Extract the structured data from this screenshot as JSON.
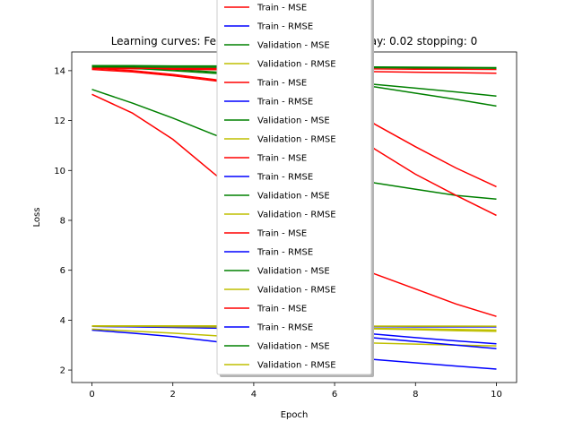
{
  "chart_data": {
    "type": "line",
    "title": "Learning curves: Features: 30 lr: 0.1 weight_decay: 0.02 stopping: 0",
    "xlabel": "Epoch",
    "ylabel": "Loss",
    "xlim": [
      -0.5,
      10.5
    ],
    "ylim": [
      1.5,
      14.75
    ],
    "xticks": [
      0,
      2,
      4,
      6,
      8,
      10
    ],
    "yticks": [
      2,
      4,
      6,
      8,
      10,
      12,
      14
    ],
    "grid": false,
    "legend_position": "upper center",
    "colors": {
      "Train - MSE": "#ff0000",
      "Train - RMSE": "#0000ff",
      "Validation - MSE": "#008000",
      "Validation - RMSE": "#bfbf00"
    },
    "x": [
      0,
      1,
      2,
      3,
      4,
      5,
      6,
      7,
      8,
      9,
      10
    ],
    "series": [
      {
        "name": "Train - MSE",
        "values": [
          14.05,
          13.95,
          13.8,
          13.6,
          13.4,
          13.2,
          12.9,
          11.85,
          10.95,
          10.1,
          9.35
        ]
      },
      {
        "name": "Train - RMSE",
        "values": [
          3.75,
          3.73,
          3.71,
          3.68,
          3.66,
          3.63,
          3.59,
          3.44,
          3.3,
          3.17,
          3.05
        ]
      },
      {
        "name": "Validation - MSE",
        "values": [
          14.2,
          14.2,
          14.19,
          14.19,
          14.18,
          14.17,
          14.16,
          14.15,
          14.14,
          14.13,
          14.12
        ]
      },
      {
        "name": "Validation - RMSE",
        "values": [
          3.77,
          3.77,
          3.77,
          3.77,
          3.76,
          3.76,
          3.76,
          3.76,
          3.76,
          3.76,
          3.75
        ]
      },
      {
        "name": "Train - MSE",
        "values": [
          13.05,
          12.3,
          11.25,
          9.9,
          8.6,
          7.5,
          6.5,
          5.85,
          5.25,
          4.65,
          4.15
        ]
      },
      {
        "name": "Train - RMSE",
        "values": [
          3.6,
          3.48,
          3.34,
          3.15,
          2.95,
          2.75,
          2.55,
          2.42,
          2.29,
          2.16,
          2.04
        ]
      },
      {
        "name": "Validation - MSE",
        "values": [
          13.25,
          12.7,
          12.1,
          11.45,
          10.85,
          10.3,
          9.85,
          9.5,
          9.25,
          9.0,
          8.85
        ]
      },
      {
        "name": "Validation - RMSE",
        "values": [
          3.64,
          3.56,
          3.48,
          3.38,
          3.29,
          3.21,
          3.14,
          3.08,
          3.04,
          3.0,
          2.97
        ]
      },
      {
        "name": "Train - MSE",
        "values": [
          14.1,
          14.0,
          13.85,
          13.65,
          13.4,
          13.0,
          12.0,
          10.85,
          9.85,
          9.0,
          8.2
        ]
      },
      {
        "name": "Train - RMSE",
        "values": [
          3.75,
          3.74,
          3.72,
          3.69,
          3.66,
          3.6,
          3.46,
          3.29,
          3.14,
          3.0,
          2.86
        ]
      },
      {
        "name": "Validation - MSE",
        "values": [
          14.15,
          14.1,
          14.05,
          13.95,
          13.85,
          13.75,
          13.6,
          13.45,
          13.3,
          13.15,
          12.98
        ]
      },
      {
        "name": "Validation - RMSE",
        "values": [
          3.76,
          3.75,
          3.75,
          3.73,
          3.72,
          3.71,
          3.69,
          3.67,
          3.65,
          3.63,
          3.6
        ]
      },
      {
        "name": "Train - MSE",
        "values": [
          14.1,
          14.08,
          14.06,
          14.04,
          14.02,
          14.0,
          13.98,
          13.96,
          13.94,
          13.92,
          13.9
        ]
      },
      {
        "name": "Train - RMSE",
        "values": [
          3.75,
          3.75,
          3.75,
          3.75,
          3.74,
          3.74,
          3.74,
          3.74,
          3.73,
          3.73,
          3.73
        ]
      },
      {
        "name": "Validation - MSE",
        "values": [
          14.2,
          14.1,
          14.0,
          13.9,
          13.8,
          13.65,
          13.5,
          13.35,
          13.1,
          12.85,
          12.58
        ]
      },
      {
        "name": "Validation - RMSE",
        "values": [
          3.77,
          3.76,
          3.74,
          3.73,
          3.71,
          3.69,
          3.67,
          3.65,
          3.62,
          3.58,
          3.55
        ]
      },
      {
        "name": "Train - MSE",
        "values": [
          14.1,
          14.1,
          14.09,
          14.09,
          14.08,
          14.08,
          14.07,
          14.07,
          14.06,
          14.06,
          14.05
        ]
      },
      {
        "name": "Train - RMSE",
        "values": [
          3.75,
          3.75,
          3.75,
          3.75,
          3.75,
          3.75,
          3.75,
          3.75,
          3.75,
          3.75,
          3.75
        ]
      },
      {
        "name": "Validation - MSE",
        "values": [
          14.15,
          14.15,
          14.14,
          14.14,
          14.13,
          14.13,
          14.12,
          14.12,
          14.11,
          14.11,
          14.1
        ]
      },
      {
        "name": "Validation - RMSE",
        "values": [
          3.76,
          3.76,
          3.76,
          3.76,
          3.76,
          3.76,
          3.76,
          3.76,
          3.76,
          3.76,
          3.76
        ]
      }
    ]
  }
}
